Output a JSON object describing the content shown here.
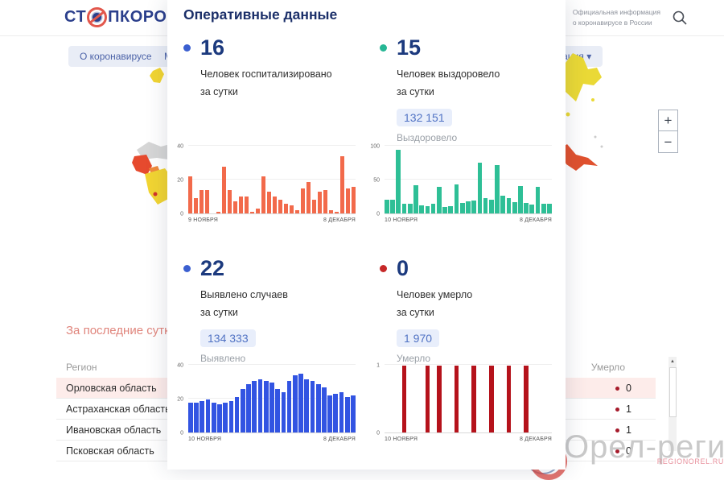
{
  "header": {
    "logo_prefix": "СТ",
    "logo_suffix": "ПКОРОНАВИРУС",
    "search_caption_line1": "Официальная информация",
    "search_caption_line2": "о коронавирусе в России"
  },
  "nav": {
    "items": [
      {
        "label": "О коронавирусе ▾"
      },
      {
        "label": "М"
      },
      {
        "label": "Вакцинация ▾"
      }
    ]
  },
  "map": {
    "zoom_in": "+",
    "zoom_out": "−"
  },
  "panel": {
    "title": "Оперативные данные",
    "stats": [
      {
        "value": "16",
        "label_line1": "Человек госпитализировано",
        "label_line2": "за сутки",
        "dot_color": "#3b5fd0"
      },
      {
        "value": "15",
        "label_line1": "Человек выздоровело",
        "label_line2": "за сутки",
        "badge": "132 151",
        "badge_label": "Выздоровело",
        "dot_color": "#27b795"
      },
      {
        "value": "22",
        "label_line1": "Выявлено случаев",
        "label_line2": "за сутки",
        "badge": "134 333",
        "badge_label": "Выявлено",
        "dot_color": "#3b5fd0"
      },
      {
        "value": "0",
        "label_line1": "Человек умерло",
        "label_line2": "за сутки",
        "badge": "1 970",
        "badge_label": "Умерло",
        "dot_color": "#c62828"
      }
    ]
  },
  "chart_data": [
    {
      "name": "hospitalized-per-day",
      "type": "bar",
      "color": "#f26a4b",
      "ylim": [
        0,
        40
      ],
      "yticks": [
        0,
        20,
        40
      ],
      "x_start": "9 НОЯБРЯ",
      "x_end": "8 ДЕКАБРЯ",
      "grid": true,
      "legend": false,
      "values": [
        22,
        9,
        14,
        14,
        0,
        1,
        28,
        14,
        7,
        10,
        10,
        1,
        3,
        22,
        13,
        10,
        8,
        6,
        5,
        2,
        15,
        19,
        8,
        13,
        14,
        2,
        1,
        34,
        15,
        16
      ]
    },
    {
      "name": "recovered-per-day",
      "type": "bar",
      "color": "#2ebf96",
      "ylim": [
        0,
        100
      ],
      "yticks": [
        0,
        50,
        100
      ],
      "x_start": "10 НОЯБРЯ",
      "x_end": "8 ДЕКАБРЯ",
      "grid": true,
      "legend": false,
      "values": [
        21,
        20,
        95,
        15,
        14,
        42,
        12,
        11,
        14,
        40,
        10,
        11,
        43,
        16,
        18,
        19,
        76,
        23,
        21,
        72,
        27,
        23,
        17,
        41,
        16,
        13,
        40,
        15,
        14
      ]
    },
    {
      "name": "confirmed-cases-per-day",
      "type": "bar",
      "color": "#3254e2",
      "ylim": [
        0,
        40
      ],
      "yticks": [
        0,
        20,
        40
      ],
      "x_start": "10 НОЯБРЯ",
      "x_end": "8 ДЕКАБРЯ",
      "grid": true,
      "legend": false,
      "values": [
        18,
        18,
        19,
        20,
        18,
        17,
        18,
        19,
        21,
        26,
        29,
        31,
        32,
        31,
        30,
        26,
        24,
        31,
        34,
        35,
        32,
        31,
        29,
        27,
        22,
        23,
        24,
        21,
        22
      ]
    },
    {
      "name": "deaths-per-day",
      "type": "bar",
      "color": "#b5121b",
      "ylim": [
        0,
        1
      ],
      "yticks": [
        0,
        1
      ],
      "x_start": "10 НОЯБРЯ",
      "x_end": "8 ДЕКАБРЯ",
      "grid": true,
      "legend": false,
      "values": [
        0,
        0,
        0,
        1,
        0,
        0,
        0,
        1,
        0,
        1,
        0,
        0,
        1,
        0,
        0,
        1,
        0,
        0,
        1,
        0,
        0,
        1,
        0,
        0,
        1,
        0,
        0,
        0,
        0
      ]
    }
  ],
  "table": {
    "title": "За последние сутки",
    "col_region": "Регион",
    "col_deaths": "Умерло",
    "dot_color": "#a61b2b",
    "rows": [
      {
        "region": "Орловская область",
        "deaths": "0",
        "highlight": true
      },
      {
        "region": "Астраханская область",
        "deaths": "1",
        "highlight": false
      },
      {
        "region": "Ивановская область",
        "deaths": "1",
        "highlight": false
      },
      {
        "region": "Псковская область",
        "deaths": "0",
        "highlight": false
      }
    ]
  },
  "watermark": {
    "text": "Орел-регион",
    "site": "REGIONOREL.RU"
  }
}
